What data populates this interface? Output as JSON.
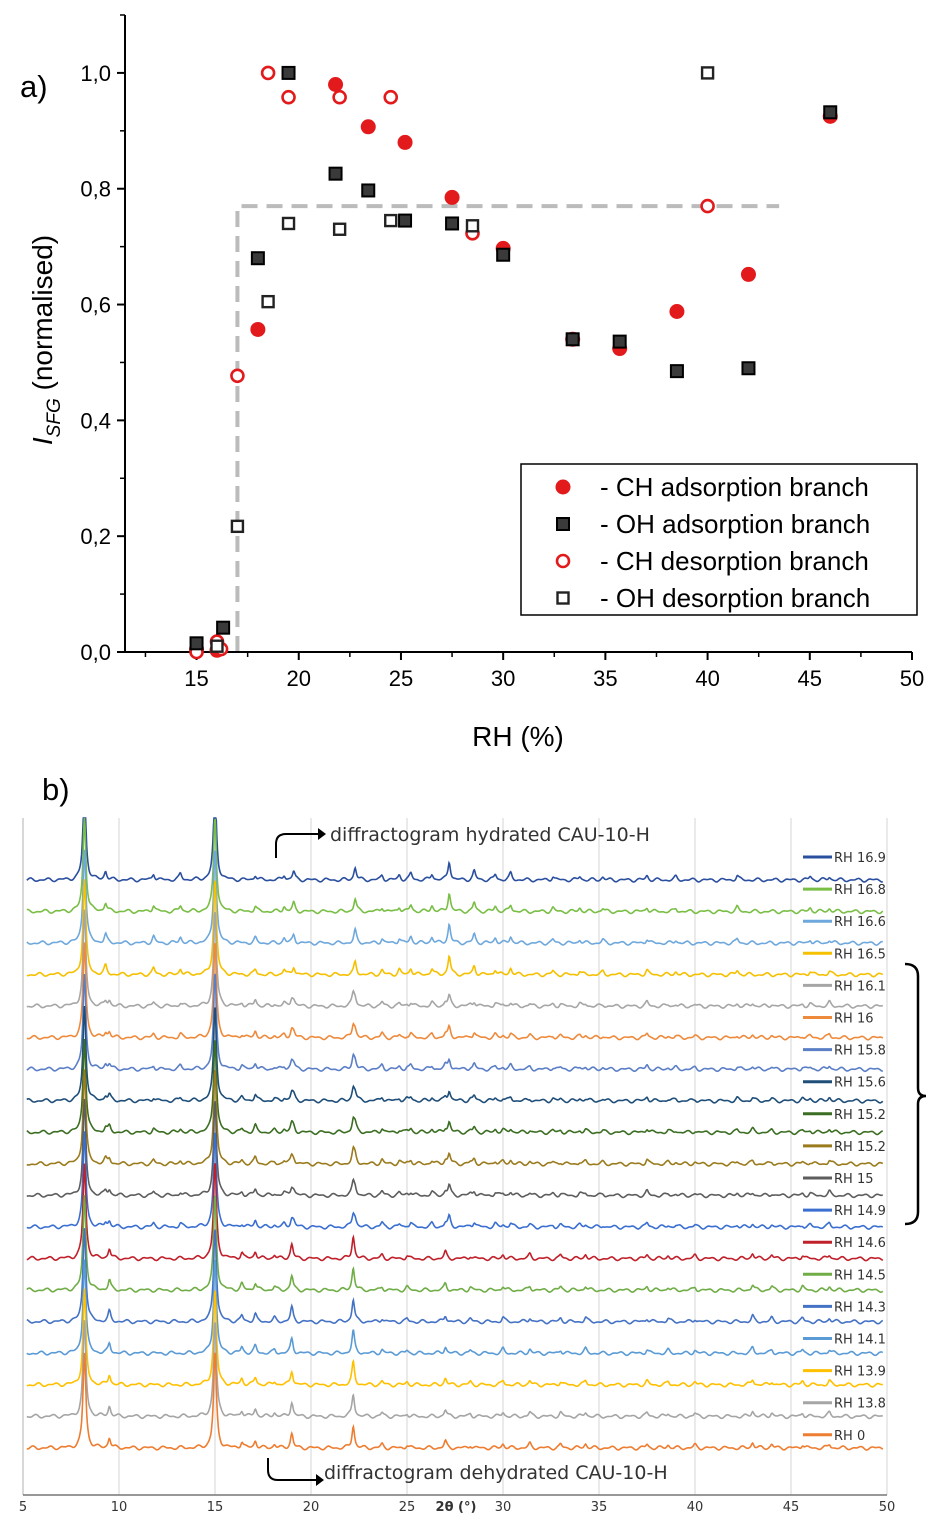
{
  "colors": {
    "ch": "#e31a1c",
    "oh": "#222222",
    "guide": "#bbbbbb",
    "traces": {
      "navy": "#2a4f9f",
      "green": "#79be45",
      "lightblue": "#6fa8dc",
      "gold": "#f5c000",
      "gray": "#a6a6a6",
      "orange": "#ee8a3c",
      "steelblue": "#5b7fc6",
      "darkblue": "#1f4e79",
      "darkgreen": "#3b6e23",
      "olive": "#9a7b1e",
      "darkgray": "#5d5d5d",
      "blue": "#3a6fd0",
      "red": "#c0202a",
      "green2": "#70ad47",
      "blue2": "#4472c4",
      "sky": "#5b9bd5",
      "yellow": "#ffc000",
      "silver": "#a5a5a5",
      "orange2": "#ed7d31"
    }
  },
  "chart_data": [
    {
      "type": "scatter",
      "panel_label": "a)",
      "title": "",
      "xlabel": "RH (%)",
      "ylabel_main": "I",
      "ylabel_sub": "SFG",
      "ylabel_rest": " (normalised)",
      "xlim": [
        11.5,
        50
      ],
      "ylim": [
        0,
        1.1
      ],
      "xticks": [
        15,
        20,
        25,
        30,
        35,
        40,
        45,
        50
      ],
      "xtick_labels": [
        "15",
        "20",
        "25",
        "30",
        "35",
        "40",
        "45",
        "50"
      ],
      "yticks": [
        0,
        0.2,
        0.4,
        0.6,
        0.8,
        1.0
      ],
      "ytick_labels": [
        "0,0",
        "0,2",
        "0,4",
        "0,6",
        "0,8",
        "1,0"
      ],
      "grid": false,
      "legend_position": "bottom-right",
      "guide_line": {
        "x": [
          17,
          17,
          43.5
        ],
        "y": [
          0,
          0.77,
          0.77
        ]
      },
      "series": [
        {
          "name": "- CH adsorption branch",
          "marker": "filled-circle",
          "color": "#e31a1c",
          "x": [
            15,
            16,
            18,
            21.8,
            23.4,
            25.2,
            27.5,
            30,
            33.4,
            35.7,
            38.5,
            42,
            46
          ],
          "y": [
            0.005,
            0.003,
            0.557,
            0.98,
            0.907,
            0.88,
            0.785,
            0.697,
            0.54,
            0.524,
            0.588,
            0.652,
            0.925
          ]
        },
        {
          "name": "- OH adsorption branch",
          "marker": "filled-square",
          "color": "#222222",
          "x": [
            15,
            16.3,
            18,
            19.5,
            21.8,
            23.4,
            25.2,
            27.5,
            30,
            33.4,
            35.7,
            38.5,
            42,
            46
          ],
          "y": [
            0.015,
            0.042,
            0.68,
            1.0,
            0.826,
            0.797,
            0.745,
            0.74,
            0.686,
            0.54,
            0.536,
            0.485,
            0.49,
            0.932
          ]
        },
        {
          "name": "- CH desorption branch",
          "marker": "open-circle",
          "color": "#e31a1c",
          "x": [
            15,
            16,
            16.2,
            17,
            18.5,
            19.5,
            22,
            24.5,
            28.5,
            40
          ],
          "y": [
            0.0,
            0.018,
            0.005,
            0.477,
            1.0,
            0.958,
            0.958,
            0.958,
            0.723,
            0.77
          ]
        },
        {
          "name": "- OH desorption branch",
          "marker": "open-square",
          "color": "#222222",
          "x": [
            16,
            17,
            18.5,
            19.5,
            22,
            24.5,
            28.5,
            40
          ],
          "y": [
            0.01,
            0.217,
            0.605,
            0.74,
            0.73,
            0.745,
            0.736,
            1.0
          ]
        }
      ]
    },
    {
      "type": "line",
      "panel_label": "b)",
      "title": "",
      "xlabel": "2θ (°)",
      "xlim": [
        5,
        50
      ],
      "xticks": [
        5,
        10,
        15,
        20,
        25,
        30,
        35,
        40,
        45,
        50
      ],
      "xtick_labels": [
        "5",
        "10",
        "15",
        "20",
        "25",
        "30",
        "35",
        "40",
        "45",
        "50"
      ],
      "grid": true,
      "legend_position": "right",
      "annotation_top": "diffractogram hydrated CAU-10-H",
      "annotation_bottom": "diffractogram dehydrated CAU-10-H",
      "series": [
        {
          "name": "RH 16.9",
          "color_key": "navy",
          "phase": "hydrated"
        },
        {
          "name": "RH 16.8",
          "color_key": "green",
          "phase": "hydrated"
        },
        {
          "name": "RH 16.6",
          "color_key": "lightblue",
          "phase": "hydrated"
        },
        {
          "name": "RH 16.5",
          "color_key": "gold",
          "phase": "hydrated"
        },
        {
          "name": "RH 16.1",
          "color_key": "gray",
          "phase": "mixed"
        },
        {
          "name": "RH 16",
          "color_key": "orange",
          "phase": "mixed"
        },
        {
          "name": "RH 15.8",
          "color_key": "steelblue",
          "phase": "mixed"
        },
        {
          "name": "RH 15.6",
          "color_key": "darkblue",
          "phase": "mixed"
        },
        {
          "name": "RH 15.2",
          "color_key": "darkgreen",
          "phase": "mixed"
        },
        {
          "name": "RH 15.2",
          "color_key": "olive",
          "phase": "mixed"
        },
        {
          "name": "RH 15",
          "color_key": "darkgray",
          "phase": "mixed"
        },
        {
          "name": "RH 14.9",
          "color_key": "blue",
          "phase": "mixed"
        },
        {
          "name": "RH 14.6",
          "color_key": "red",
          "phase": "dehydrated"
        },
        {
          "name": "RH 14.5",
          "color_key": "green2",
          "phase": "dehydrated"
        },
        {
          "name": "RH 14.3",
          "color_key": "blue2",
          "phase": "dehydrated"
        },
        {
          "name": "RH 14.1",
          "color_key": "sky",
          "phase": "dehydrated"
        },
        {
          "name": "RH 13.9",
          "color_key": "yellow",
          "phase": "dehydrated"
        },
        {
          "name": "RH 13.8",
          "color_key": "silver",
          "phase": "dehydrated"
        },
        {
          "name": "RH 0",
          "color_key": "orange2",
          "phase": "dehydrated"
        }
      ],
      "peaks": {
        "common": [
          [
            8.2,
            1.0
          ],
          [
            15.0,
            1.0
          ]
        ],
        "hydrated": [
          [
            9.3,
            0.28
          ],
          [
            11.8,
            0.22
          ],
          [
            13.2,
            0.2
          ],
          [
            17.1,
            0.16
          ],
          [
            18.6,
            0.17
          ],
          [
            19.1,
            0.28
          ],
          [
            22.3,
            0.42
          ],
          [
            23.7,
            0.15
          ],
          [
            24.6,
            0.16
          ],
          [
            25.2,
            0.22
          ],
          [
            26.3,
            0.2
          ],
          [
            27.2,
            0.62
          ],
          [
            28.5,
            0.3
          ],
          [
            29.6,
            0.18
          ],
          [
            30.4,
            0.22
          ],
          [
            32.6,
            0.12
          ],
          [
            34.0,
            0.12
          ],
          [
            35.2,
            0.1
          ],
          [
            37.5,
            0.14
          ],
          [
            39.0,
            0.1
          ],
          [
            42.2,
            0.14
          ],
          [
            46.0,
            0.12
          ],
          [
            47.0,
            0.1
          ]
        ],
        "dehydrated": [
          [
            9.5,
            0.33
          ],
          [
            16.4,
            0.2
          ],
          [
            17.1,
            0.24
          ],
          [
            18.1,
            0.12
          ],
          [
            19.0,
            0.48
          ],
          [
            22.2,
            0.75
          ],
          [
            23.7,
            0.12
          ],
          [
            25.0,
            0.1
          ],
          [
            27.0,
            0.22
          ],
          [
            28.3,
            0.1
          ],
          [
            30.0,
            0.14
          ],
          [
            31.4,
            0.14
          ],
          [
            33.0,
            0.12
          ],
          [
            34.3,
            0.14
          ],
          [
            37.5,
            0.12
          ],
          [
            38.6,
            0.1
          ],
          [
            40.0,
            0.1
          ],
          [
            43.0,
            0.18
          ],
          [
            44.0,
            0.12
          ],
          [
            45.6,
            0.12
          ],
          [
            47.0,
            0.12
          ]
        ]
      }
    }
  ]
}
